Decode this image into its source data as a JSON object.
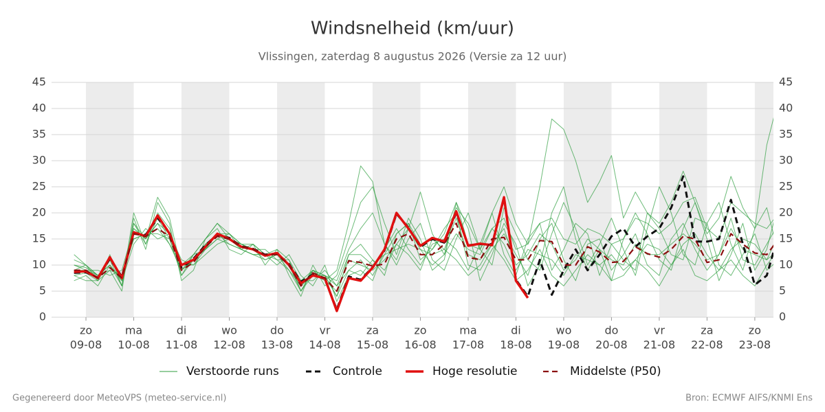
{
  "chart_data": {
    "type": "line",
    "title": "Windsnelheid (km/uur)",
    "subtitle": "Vlissingen, zaterdag  8 augustus 2026 (Versie za 12 uur)",
    "footer_left": "Gegenereerd door MeteoVPS (meteo-service.nl)",
    "footer_right": "Bron: ECMWF AIFS/KNMI Ens",
    "xlim": [
      -0.72,
      14.39
    ],
    "xticks": [
      {
        "value": 0,
        "label": "zo",
        "sublabel": "09-08"
      },
      {
        "value": 1,
        "label": "ma",
        "sublabel": "10-08"
      },
      {
        "value": 2,
        "label": "di",
        "sublabel": "11-08"
      },
      {
        "value": 3,
        "label": "wo",
        "sublabel": "12-08"
      },
      {
        "value": 4,
        "label": "do",
        "sublabel": "13-08"
      },
      {
        "value": 5,
        "label": "vr",
        "sublabel": "14-08"
      },
      {
        "value": 6,
        "label": "za",
        "sublabel": "15-08"
      },
      {
        "value": 7,
        "label": "zo",
        "sublabel": "16-08"
      },
      {
        "value": 8,
        "label": "ma",
        "sublabel": "17-08"
      },
      {
        "value": 9,
        "label": "di",
        "sublabel": "18-08"
      },
      {
        "value": 10,
        "label": "wo",
        "sublabel": "19-08"
      },
      {
        "value": 11,
        "label": "do",
        "sublabel": "20-08"
      },
      {
        "value": 12,
        "label": "vr",
        "sublabel": "21-08"
      },
      {
        "value": 13,
        "label": "za",
        "sublabel": "22-08"
      },
      {
        "value": 14,
        "label": "zo",
        "sublabel": "23-08"
      }
    ],
    "ylim": [
      0,
      45
    ],
    "yticks": [
      0,
      5,
      10,
      15,
      20,
      25,
      30,
      35,
      40,
      45
    ],
    "grid": true,
    "x": [
      -0.25,
      0,
      0.25,
      0.5,
      0.75,
      1,
      1.25,
      1.5,
      1.75,
      2,
      2.25,
      2.5,
      2.75,
      3,
      3.25,
      3.5,
      3.75,
      4,
      4.25,
      4.5,
      4.75,
      5,
      5.25,
      5.5,
      5.75,
      6,
      6.25,
      6.5,
      6.75,
      7,
      7.25,
      7.5,
      7.75,
      8,
      8.25,
      8.5,
      8.75,
      9,
      9.25,
      9.5,
      9.75,
      10,
      10.25,
      10.5,
      10.75,
      11,
      11.25,
      11.5,
      11.75,
      12,
      12.25,
      12.5,
      12.75,
      13,
      13.25,
      13.5,
      13.75,
      14,
      14.25,
      14.5
    ],
    "ensemble": {
      "name": "Verstoorde runs",
      "color": "#2e9e3e",
      "members": [
        [
          10,
          9.5,
          8,
          10,
          6,
          18,
          14,
          20,
          17,
          8,
          11,
          14,
          16,
          14,
          13,
          12,
          11,
          12,
          9,
          5,
          9,
          8,
          4,
          12,
          14,
          11,
          8,
          16,
          18,
          11,
          13,
          17,
          20,
          10,
          9,
          13,
          16,
          12,
          8,
          15,
          18,
          11,
          7,
          14,
          15,
          9,
          12,
          16,
          10,
          8,
          15,
          18,
          13,
          9,
          12,
          19,
          11,
          10,
          14,
          18
        ],
        [
          8,
          8.5,
          7,
          11,
          8,
          15,
          16,
          17,
          14,
          10,
          12,
          13,
          15,
          16,
          14,
          13,
          13,
          11,
          11,
          7,
          7,
          9,
          6,
          9,
          11,
          8,
          12,
          13,
          14,
          13,
          10,
          12,
          16,
          13,
          12,
          17,
          14,
          9,
          13,
          12,
          11,
          8,
          12,
          11,
          10,
          12,
          9,
          11,
          14,
          13,
          10,
          14,
          16,
          12,
          9,
          13,
          15,
          14,
          11,
          13
        ],
        [
          12,
          10,
          8,
          9,
          5,
          19,
          13,
          22,
          18,
          7,
          9,
          15,
          17,
          13,
          12,
          14,
          10,
          13,
          8,
          4,
          10,
          6,
          8,
          15,
          22,
          25,
          18,
          12,
          19,
          15,
          9,
          11,
          22,
          17,
          7,
          12,
          18,
          14,
          6,
          10,
          20,
          25,
          15,
          9,
          13,
          7,
          15,
          20,
          16,
          11,
          9,
          17,
          22,
          15,
          7,
          12,
          18,
          9,
          13,
          22
        ],
        [
          7,
          8,
          6,
          10,
          7,
          14,
          17,
          15,
          16,
          11,
          10,
          12,
          14,
          15,
          13,
          12,
          12,
          10,
          12,
          8,
          6,
          10,
          3,
          8,
          9,
          7,
          13,
          17,
          13,
          10,
          14,
          15,
          13,
          9,
          14,
          20,
          12,
          8,
          15,
          18,
          9,
          13,
          18,
          16,
          8,
          14,
          11,
          9,
          20,
          17,
          12,
          11,
          19,
          18,
          10,
          8,
          12,
          16,
          9,
          11
        ],
        [
          9,
          9,
          9,
          8,
          9,
          17,
          15,
          18,
          14,
          9,
          11,
          14,
          16,
          16,
          14,
          13,
          11,
          12,
          10,
          6,
          9,
          7,
          5,
          11,
          10,
          9,
          11,
          14,
          17,
          13,
          12,
          13,
          19,
          12,
          11,
          14,
          17,
          10,
          12,
          16,
          14,
          9,
          11,
          15,
          13,
          11,
          10,
          14,
          12,
          12,
          14,
          16,
          14,
          11,
          12,
          17,
          13,
          12,
          11,
          16
        ],
        [
          11,
          10,
          7,
          12,
          6,
          20,
          14,
          19,
          15,
          8,
          12,
          15,
          18,
          15,
          14,
          14,
          12,
          13,
          11,
          5,
          8,
          8,
          7,
          13,
          17,
          20,
          14,
          10,
          15,
          18,
          11,
          9,
          15,
          20,
          13,
          10,
          21,
          16,
          11,
          9,
          16,
          22,
          17,
          10,
          14,
          19,
          13,
          8,
          17,
          25,
          20,
          12,
          10,
          18,
          22,
          14,
          9,
          17,
          21,
          12
        ],
        [
          8,
          7,
          7,
          9,
          8,
          15,
          16,
          16,
          15,
          10,
          10,
          13,
          15,
          14,
          13,
          12,
          12,
          11,
          9,
          6,
          8,
          8,
          4,
          9,
          8,
          11,
          9,
          14,
          12,
          9,
          15,
          13,
          11,
          8,
          10,
          14,
          11,
          7,
          9,
          13,
          8,
          6,
          9,
          12,
          10,
          7,
          8,
          11,
          9,
          6,
          10,
          13,
          8,
          7,
          9,
          11,
          8,
          6,
          10,
          13
        ],
        [
          10,
          9,
          8,
          10,
          7,
          17,
          15,
          18,
          16,
          9,
          11,
          13,
          16,
          15,
          14,
          13,
          12,
          12,
          10,
          7,
          9,
          8,
          6,
          12,
          12,
          10,
          12,
          16,
          18,
          14,
          13,
          16,
          22,
          14,
          13,
          17,
          19,
          13,
          14,
          18,
          19,
          15,
          14,
          17,
          16,
          14,
          15,
          19,
          18,
          16,
          18,
          22,
          23,
          17,
          15,
          22,
          20,
          18,
          17,
          20
        ],
        [
          9,
          10,
          8,
          11,
          6,
          18,
          15,
          23,
          19,
          9,
          12,
          15,
          18,
          16,
          13,
          14,
          12,
          12,
          10,
          5,
          9,
          7,
          9,
          18,
          29,
          26,
          14,
          11,
          17,
          24,
          16,
          12,
          21,
          18,
          13,
          20,
          25,
          18,
          14,
          25,
          38,
          36,
          30,
          22,
          26,
          31,
          19,
          24,
          20,
          18,
          22,
          28,
          22,
          16,
          19,
          27,
          21,
          17,
          33,
          42
        ]
      ]
    },
    "series": [
      {
        "name": "Controle",
        "color": "#111111",
        "dash": true,
        "width": 3,
        "values": [
          8.5,
          8.6,
          7.6,
          11.2,
          7.8,
          16,
          15.8,
          19,
          16.2,
          9.5,
          11.2,
          13.8,
          15.8,
          15.2,
          13.6,
          13.1,
          12,
          12.2,
          10.2,
          6.8,
          8.2,
          7.3,
          1.5,
          7.8,
          7.2,
          9.6,
          12.8,
          19.8,
          17.2,
          13.5,
          15,
          14.3,
          20,
          13.8,
          14,
          14,
          22.8,
          7.2,
          4,
          11,
          4.3,
          9,
          13,
          9,
          12,
          15.5,
          17,
          13.5,
          15.5,
          17,
          21,
          27,
          14.5,
          14.5,
          15,
          22.5,
          14,
          6.2,
          8,
          16
        ]
      },
      {
        "name": "Hoge resolutie",
        "color": "#e01010",
        "dash": false,
        "width": 3.5,
        "values": [
          8.7,
          8.8,
          7.5,
          11.5,
          7.5,
          16.3,
          15.5,
          19.5,
          16,
          10,
          11,
          13.5,
          16,
          15,
          13.5,
          13,
          11.8,
          12.3,
          10,
          6.5,
          8,
          7.5,
          1.2,
          7.5,
          7,
          9.5,
          13,
          20,
          17,
          13.7,
          15.2,
          14.5,
          20.3,
          13.7,
          14.1,
          13.8,
          23,
          7,
          3.7,
          null,
          null,
          null,
          null,
          null,
          null,
          null,
          null,
          null,
          null,
          null,
          null,
          null,
          null,
          null,
          null,
          null,
          null,
          null,
          null,
          null
        ]
      },
      {
        "name": "Middelste (P50)",
        "color": "#8b0f0f",
        "dash": true,
        "width": 2.2,
        "values": [
          9,
          9,
          7.5,
          9.5,
          7.5,
          16,
          15.5,
          17,
          15.5,
          9,
          10.5,
          13.5,
          15.5,
          15,
          13.5,
          13,
          12,
          12,
          10,
          6,
          8.5,
          7.5,
          5,
          10.8,
          10.5,
          9.8,
          10.2,
          15,
          16,
          12,
          12,
          14,
          18,
          11.5,
          11,
          15,
          15.3,
          11,
          11,
          14.7,
          14.5,
          10,
          10,
          13.5,
          12.5,
          10.5,
          10.7,
          13.5,
          12.2,
          11.5,
          13,
          15.5,
          15,
          10.5,
          11,
          16,
          14,
          12.3,
          12,
          15
        ]
      }
    ]
  }
}
